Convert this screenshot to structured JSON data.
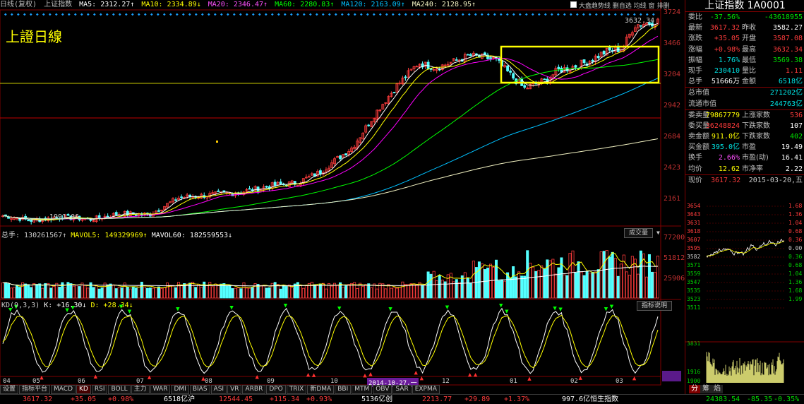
{
  "header": {
    "mode": "日线(复权)",
    "index_name": "上证指数",
    "ma5": "MA5: 2312.27↑",
    "ma10": "MA10: 2334.89↓",
    "ma20": "MA20: 2346.47↑",
    "ma60": "MA60: 2280.83↑",
    "ma120": "MA120: 2163.09↑",
    "ma240": "MA240: 2128.95↑",
    "controls": [
      "大盘趋势线",
      "删自选",
      "均线",
      "窗",
      "排删"
    ]
  },
  "colors": {
    "ma5": "#ffffff",
    "ma10": "#ffff00",
    "ma20": "#ff00ff",
    "ma60": "#00ff00",
    "ma120": "#00c0ff",
    "ma240": "#f0f0c0",
    "up": "#ff3c3c",
    "down": "#54ffff",
    "box": "#ffff00",
    "accent": "#800000"
  },
  "overlay_title": "上證日線",
  "price_labels": [
    "3724",
    "3466",
    "3204",
    "2942",
    "2684",
    "2423",
    "2161"
  ],
  "high_label": "3632.34",
  "low_label": "1991.06",
  "volume_panel": {
    "vol": "总手: 130261567↑",
    "mavol5": "MAVOL5: 149329969↑",
    "mavol60": "MAVOL60: 182559553↓",
    "button": "成交量",
    "labels": [
      "77200",
      "51812",
      "25906"
    ]
  },
  "kd_panel": {
    "title": "KD(9,3,3)",
    "k": "K: +16.30↓",
    "d": "D: +28.34↓",
    "button": "指标说明"
  },
  "months": [
    "04",
    "05",
    "06",
    "07",
    "08",
    "09",
    "10",
    "2014-10-27,一",
    "12",
    "01",
    "02",
    "03"
  ],
  "tabs": [
    "设置",
    "指标平台",
    "MACD",
    "KD",
    "RSI",
    "BOLL",
    "主力",
    "WAR",
    "DMI",
    "BIAS",
    "ASI",
    "VR",
    "ARBR",
    "DPO",
    "TRIX",
    "新DMA",
    "BBI",
    "MTM",
    "OBV",
    "SAR",
    "EXPMA"
  ],
  "right_panel": {
    "title": "上证指数  1A0001",
    "rows1": [
      {
        "k": "委比",
        "v": "-37.56%",
        "k2": "",
        "v2": "-43618955"
      },
      {
        "k": "最新",
        "v": "3617.32",
        "k2": "昨收",
        "v2": "3582.27"
      },
      {
        "k": "涨跌",
        "v": "+35.05",
        "k2": "开盘",
        "v2": "3587.08"
      },
      {
        "k": "涨幅",
        "v": "+0.98%",
        "k2": "最高",
        "v2": "3632.34"
      },
      {
        "k": "振幅",
        "v": "1.76%",
        "k2": "最低",
        "v2": "3569.38"
      },
      {
        "k": "现手",
        "v": "230410",
        "k2": "量比",
        "v2": "1.11"
      },
      {
        "k": "总手",
        "v": "51666万",
        "k2": "金额",
        "v2": "6518亿"
      }
    ],
    "rows2": [
      {
        "k": "总市值",
        "v": "",
        "k2": "",
        "v2": "271202亿"
      },
      {
        "k": "流通市值",
        "v": "",
        "k2": "",
        "v2": "244763亿"
      }
    ],
    "rows3": [
      {
        "k": "委卖量",
        "v": "79867779",
        "k2": "上涨家数",
        "v2": "536"
      },
      {
        "k": "委买量",
        "v": "36248824",
        "k2": "下跌家数",
        "v2": "107"
      },
      {
        "k": "卖金额",
        "v": "911.0亿",
        "k2": "下跌家数",
        "v2": "402"
      },
      {
        "k": "买金额",
        "v": "395.0亿",
        "k2": "市盈",
        "v2": "19.49"
      },
      {
        "k": "换手",
        "v": "2.66%",
        "k2": "市盈(动)",
        "v2": "16.41"
      },
      {
        "k": "均价",
        "v": "12.62",
        "k2": "市净率",
        "v2": "2.22"
      }
    ],
    "now_price_label": "现价",
    "now_price": "3617.32",
    "date": "2015-03-20,五",
    "mini_left": [
      "3654",
      "3643",
      "3631",
      "3618",
      "3607",
      "3595",
      "3582",
      "3571",
      "3559",
      "3547",
      "3535",
      "3523",
      "3511",
      "3831",
      "1916",
      "1900"
    ],
    "mini_right": [
      "1.68",
      "1.36",
      "1.04",
      "0.68",
      "0.36",
      "0.00",
      "0.36",
      "0.68",
      "1.04",
      "1.36",
      "1.68",
      "1.99"
    ],
    "bottom_tabs": [
      "分",
      "筹",
      "焰"
    ]
  },
  "ticker": [
    {
      "t": "3617.32",
      "c": "red"
    },
    {
      "t": "+35.05",
      "c": "red"
    },
    {
      "t": "+0.98%",
      "c": "red"
    },
    {
      "t": "6518亿沪",
      "c": "white"
    },
    {
      "t": "12544.45",
      "c": "red"
    },
    {
      "t": "+115.34",
      "c": "red"
    },
    {
      "t": "+0.93%",
      "c": "red"
    },
    {
      "t": "5136亿创",
      "c": "white"
    },
    {
      "t": "2213.77",
      "c": "red"
    },
    {
      "t": "+29.89",
      "c": "red"
    },
    {
      "t": "+1.37%",
      "c": "red"
    },
    {
      "t": "997.6亿恒生指数",
      "c": "white"
    },
    {
      "t": "24383.54",
      "c": "green"
    },
    {
      "t": "-85.35",
      "c": "green"
    },
    {
      "t": "-0.35%",
      "c": "green"
    }
  ]
}
